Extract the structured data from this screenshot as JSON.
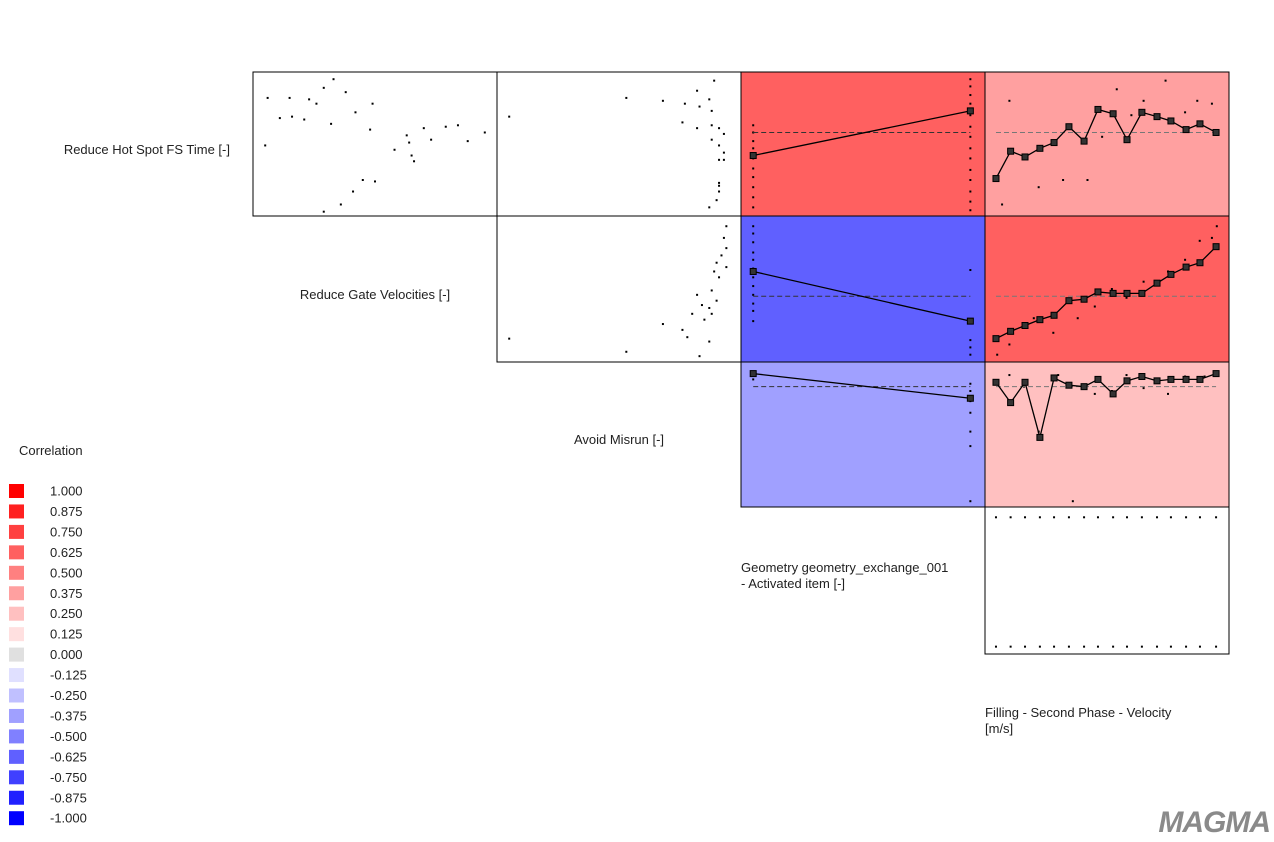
{
  "chart_data": {
    "type": "scatter-matrix",
    "variables": [
      [
        "Reduce Hot Spot FS Time [-]"
      ],
      [
        "Reduce Gate Velocities [-]"
      ],
      [
        "Avoid Misrun [-]"
      ],
      [
        "Geometry geometry_exchange_001",
        "- Activated item [-]"
      ]
    ],
    "output_label": [
      "Filling - Second Phase - Velocity",
      "[m/s]"
    ],
    "xlim": [
      0,
      100
    ],
    "ylim": [
      0,
      100
    ],
    "legend": {
      "title": "Correlation",
      "entries": [
        {
          "value": 1,
          "label": "1.000",
          "color": "#ff0000"
        },
        {
          "value": 0.875,
          "label": "0.875",
          "color": "#ff2020"
        },
        {
          "value": 0.75,
          "label": "0.750",
          "color": "#ff4040"
        },
        {
          "value": 0.625,
          "label": "0.625",
          "color": "#ff6060"
        },
        {
          "value": 0.5,
          "label": "0.500",
          "color": "#ff8080"
        },
        {
          "value": 0.375,
          "label": "0.375",
          "color": "#ffa0a0"
        },
        {
          "value": 0.25,
          "label": "0.250",
          "color": "#ffc0c0"
        },
        {
          "value": 0.125,
          "label": "0.125",
          "color": "#ffe0e0"
        },
        {
          "value": 0,
          "label": "0.000",
          "color": "#e0e0e0"
        },
        {
          "value": -0.125,
          "label": "-0.125",
          "color": "#e0e0ff"
        },
        {
          "value": -0.25,
          "label": "-0.250",
          "color": "#c0c0ff"
        },
        {
          "value": -0.375,
          "label": "-0.375",
          "color": "#a0a0ff"
        },
        {
          "value": -0.5,
          "label": "-0.500",
          "color": "#8080ff"
        },
        {
          "value": -0.625,
          "label": "-0.625",
          "color": "#6060ff"
        },
        {
          "value": -0.75,
          "label": "-0.750",
          "color": "#4040ff"
        },
        {
          "value": -0.875,
          "label": "-0.875",
          "color": "#2020ff"
        },
        {
          "value": -1,
          "label": "-1.000",
          "color": "#0000ff"
        }
      ]
    },
    "cells": [
      {
        "row": 0,
        "col": 0,
        "kind": "scatter",
        "points": {
          "x": [
            6,
            15,
            23,
            29,
            33,
            26,
            38,
            49,
            11,
            16,
            21,
            32,
            42,
            48,
            5,
            63,
            64,
            70,
            79,
            84,
            73,
            88,
            95,
            58,
            65,
            66,
            45,
            50,
            41,
            36,
            29
          ],
          "y": [
            82,
            82,
            81,
            89,
            95,
            78,
            86,
            78,
            68,
            69,
            67,
            64,
            72,
            60,
            49,
            56,
            51,
            61,
            62,
            63,
            53,
            52,
            58,
            46,
            42,
            38,
            25,
            24,
            17,
            8,
            3
          ]
        }
      },
      {
        "row": 0,
        "col": 1,
        "kind": "scatter",
        "points": {
          "x": [
            5,
            53,
            68,
            77,
            82,
            83,
            87,
            89,
            88,
            76,
            82,
            88,
            91,
            93,
            88,
            91,
            93,
            91,
            93,
            91,
            91,
            90,
            87,
            91
          ],
          "y": [
            69,
            82,
            80,
            78,
            87,
            76,
            81,
            94,
            73,
            65,
            61,
            63,
            61,
            57,
            53,
            49,
            44,
            39,
            39,
            23,
            17,
            11,
            6,
            21
          ]
        }
      },
      {
        "row": 0,
        "col": 2,
        "kind": "correlation",
        "correlation": 0.625,
        "mean": 58,
        "line": {
          "x": [
            5,
            94
          ],
          "y": [
            42,
            73
          ]
        },
        "points": {
          "x": [
            5,
            5,
            5,
            5,
            5,
            5,
            5,
            5,
            5,
            5,
            94,
            94,
            94,
            94,
            94,
            94,
            94,
            94,
            94,
            94,
            94,
            94,
            94,
            94
          ],
          "y": [
            63,
            58,
            52,
            47,
            40,
            33,
            27,
            20,
            13,
            6,
            95,
            90,
            84,
            78,
            70,
            62,
            55,
            47,
            40,
            32,
            25,
            17,
            10,
            4
          ]
        }
      },
      {
        "row": 0,
        "col": 3,
        "kind": "correlation",
        "correlation": 0.375,
        "mean": 58,
        "line": {
          "x": [
            4.5,
            10.5,
            16.4,
            22.5,
            28.3,
            34.4,
            40.6,
            46.3,
            52.5,
            58.2,
            64.3,
            70.5,
            76.2,
            82.4,
            88.1,
            94.7
          ],
          "y": [
            26,
            45,
            41,
            47,
            51,
            62,
            52,
            74,
            71,
            53,
            72,
            69,
            66,
            60,
            64,
            58
          ]
        },
        "points": {
          "x": [
            7,
            10,
            22,
            32,
            42,
            48,
            54,
            60,
            65,
            74,
            82,
            87,
            93
          ],
          "y": [
            8,
            80,
            20,
            25,
            25,
            55,
            88,
            70,
            80,
            94,
            72,
            80,
            78
          ]
        }
      },
      {
        "row": 1,
        "col": 1,
        "kind": "scatter",
        "points": {
          "x": [
            94,
            93,
            94,
            92,
            90,
            94,
            89,
            91,
            82,
            88,
            90,
            84,
            87,
            88,
            85,
            80,
            68,
            76,
            78,
            87,
            83,
            53,
            5
          ],
          "y": [
            93,
            85,
            78,
            73,
            68,
            65,
            62,
            58,
            46,
            49,
            42,
            39,
            37,
            33,
            29,
            33,
            26,
            22,
            17,
            14,
            4,
            7,
            16
          ]
        }
      },
      {
        "row": 1,
        "col": 2,
        "kind": "correlation",
        "correlation": -0.625,
        "mean": 45,
        "line": {
          "x": [
            5,
            94
          ],
          "y": [
            62,
            28
          ]
        },
        "points": {
          "x": [
            5,
            5,
            5,
            5,
            5,
            5,
            5,
            5,
            5,
            5,
            5,
            5,
            94,
            94,
            94,
            94
          ],
          "y": [
            93,
            88,
            82,
            75,
            70,
            64,
            58,
            52,
            46,
            40,
            35,
            28,
            63,
            15,
            10,
            5
          ]
        }
      },
      {
        "row": 1,
        "col": 3,
        "kind": "correlation",
        "correlation": 0.625,
        "mean": 45,
        "line": {
          "x": [
            4.5,
            10.5,
            16.4,
            22.5,
            28.3,
            34.4,
            40.6,
            46.3,
            52.5,
            58.2,
            64.3,
            70.5,
            76.2,
            82.4,
            88.1,
            94.7
          ],
          "y": [
            16,
            21,
            25,
            29,
            32,
            42,
            43,
            48,
            47,
            47,
            47,
            54,
            60,
            65,
            68,
            79
          ]
        },
        "points": {
          "x": [
            5,
            10,
            20,
            28,
            38,
            45,
            52,
            58,
            65,
            75,
            82,
            88,
            93,
            95
          ],
          "y": [
            5,
            12,
            30,
            20,
            30,
            38,
            50,
            44,
            55,
            62,
            70,
            83,
            85,
            93
          ]
        }
      },
      {
        "row": 2,
        "col": 2,
        "kind": "correlation",
        "correlation": -0.375,
        "mean": 83,
        "line": {
          "x": [
            5,
            94
          ],
          "y": [
            92,
            75
          ]
        },
        "points": {
          "x": [
            5,
            5,
            94,
            94,
            94,
            94,
            94,
            94,
            94
          ],
          "y": [
            91,
            88,
            85,
            80,
            73,
            65,
            52,
            42,
            4
          ]
        }
      },
      {
        "row": 2,
        "col": 3,
        "kind": "correlation",
        "correlation": 0.25,
        "mean": 83,
        "line": {
          "x": [
            4.5,
            10.5,
            16.4,
            22.5,
            28.3,
            34.4,
            40.6,
            46.3,
            52.5,
            58.2,
            64.3,
            70.5,
            76.2,
            82.4,
            88.1,
            94.7
          ],
          "y": [
            86,
            72,
            86,
            48,
            89,
            84,
            83,
            88,
            78,
            87,
            90,
            87,
            88,
            88,
            88,
            92
          ]
        },
        "points": {
          "x": [
            10,
            16,
            22,
            30,
            36,
            45,
            52,
            58,
            65,
            75,
            82,
            90
          ],
          "y": [
            91,
            83,
            52,
            91,
            4,
            78,
            80,
            91,
            82,
            78,
            90,
            90
          ]
        }
      },
      {
        "row": 3,
        "col": 3,
        "kind": "scatter",
        "points": {
          "x": [
            4.5,
            10.5,
            16.4,
            22.5,
            28.3,
            34.4,
            40.6,
            46.3,
            52.5,
            58.2,
            64.3,
            70.5,
            76.2,
            82.4,
            88.1,
            94.7,
            4.5,
            10.5,
            16.4,
            22.5,
            28.3,
            34.4,
            40.6,
            46.3,
            52.5,
            58.2,
            64.3,
            70.5,
            76.2,
            82.4,
            88.1,
            94.7
          ],
          "y": [
            93,
            93,
            93,
            93,
            93,
            93,
            93,
            93,
            93,
            93,
            93,
            93,
            93,
            93,
            93,
            93,
            5,
            5,
            5,
            5,
            5,
            5,
            5,
            5,
            5,
            5,
            5,
            5,
            5,
            5,
            5,
            5
          ]
        }
      }
    ],
    "logo": "MAGMA"
  }
}
